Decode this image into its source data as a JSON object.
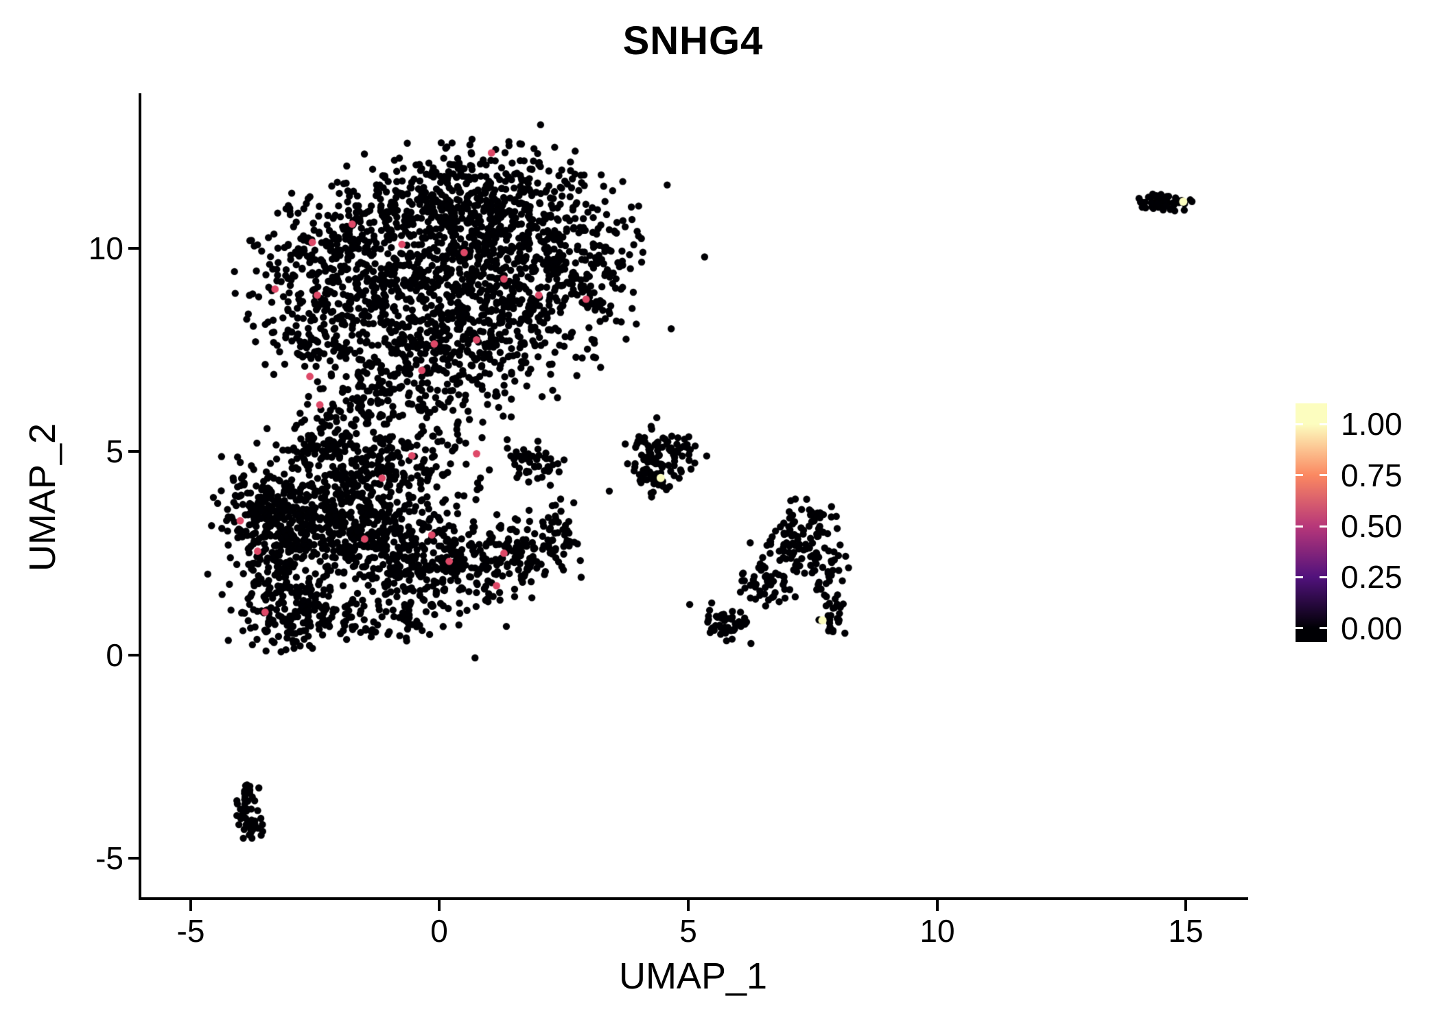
{
  "chart_data": {
    "type": "scatter",
    "title": "SNHG4",
    "xlabel": "UMAP_1",
    "ylabel": "UMAP_2",
    "xlim": [
      -6.0,
      16.2
    ],
    "ylim": [
      -6.0,
      13.75
    ],
    "x_ticks": [
      -5,
      0,
      5,
      10,
      15
    ],
    "x_tick_labels": [
      "-5",
      "0",
      "5",
      "10",
      "15"
    ],
    "y_ticks": [
      -5,
      0,
      5,
      10
    ],
    "y_tick_labels": [
      "-5",
      "0",
      "5",
      "10"
    ],
    "grid": "off",
    "legend_position": "right",
    "background": "#ffffff",
    "point_color_zero": "#000004",
    "colorbar": {
      "tick_labels": [
        "1.00",
        "0.75",
        "0.50",
        "0.25",
        "0.00"
      ],
      "tick_values": [
        1.0,
        0.75,
        0.5,
        0.25,
        0.0
      ],
      "gradient_stops": [
        {
          "value": 0.0,
          "color": "#000004"
        },
        {
          "value": 0.25,
          "color": "#51127c"
        },
        {
          "value": 0.5,
          "color": "#b73779"
        },
        {
          "value": 0.75,
          "color": "#fb8861"
        },
        {
          "value": 1.0,
          "color": "#fcfdbf"
        }
      ]
    },
    "seed": 42,
    "cluster_fields": [
      "cx",
      "cy",
      "sx",
      "sy",
      "n"
    ],
    "clusters": [
      [
        0.9,
        11.6,
        1.0,
        0.5,
        220
      ],
      [
        -0.9,
        10.7,
        1.1,
        0.6,
        220
      ],
      [
        1.6,
        10.4,
        1.1,
        0.7,
        260
      ],
      [
        -2.2,
        9.6,
        0.8,
        0.8,
        220
      ],
      [
        0.3,
        9.4,
        1.2,
        0.7,
        300
      ],
      [
        2.6,
        9.2,
        0.7,
        0.8,
        180
      ],
      [
        -0.6,
        8.3,
        1.1,
        0.6,
        220
      ],
      [
        1.2,
        8.0,
        0.9,
        0.5,
        160
      ],
      [
        -2.6,
        7.8,
        0.5,
        0.4,
        80
      ],
      [
        0.1,
        7.0,
        0.8,
        0.5,
        130
      ],
      [
        -1.5,
        6.7,
        0.6,
        0.4,
        70
      ],
      [
        -0.5,
        6.1,
        0.9,
        0.4,
        60
      ],
      [
        -2.3,
        3.6,
        0.9,
        0.8,
        380
      ],
      [
        -1.0,
        2.8,
        0.9,
        0.7,
        300
      ],
      [
        -3.3,
        2.5,
        0.5,
        0.8,
        180
      ],
      [
        -2.9,
        1.0,
        0.5,
        0.45,
        140
      ],
      [
        -3.6,
        3.6,
        0.35,
        0.5,
        90
      ],
      [
        0.3,
        2.0,
        0.8,
        0.5,
        160
      ],
      [
        1.5,
        2.6,
        0.55,
        0.45,
        110
      ],
      [
        -0.9,
        4.9,
        0.9,
        0.45,
        130
      ],
      [
        -2.2,
        5.3,
        0.6,
        0.4,
        90
      ],
      [
        1.9,
        4.75,
        0.35,
        0.25,
        45
      ],
      [
        2.3,
        2.9,
        0.25,
        0.35,
        35
      ],
      [
        -1.2,
        0.8,
        0.8,
        0.3,
        70
      ],
      [
        4.35,
        4.9,
        0.3,
        0.4,
        85
      ],
      [
        4.9,
        4.95,
        0.2,
        0.15,
        20
      ],
      [
        4.35,
        4.2,
        0.2,
        0.15,
        15
      ],
      [
        7.25,
        2.55,
        0.45,
        0.45,
        100
      ],
      [
        6.5,
        1.7,
        0.3,
        0.3,
        40
      ],
      [
        5.75,
        0.8,
        0.25,
        0.18,
        45
      ],
      [
        7.9,
        1.4,
        0.12,
        0.5,
        35
      ],
      [
        7.5,
        3.3,
        0.3,
        0.2,
        25
      ],
      [
        14.55,
        11.1,
        0.22,
        0.13,
        55
      ],
      [
        -3.85,
        -3.55,
        0.1,
        0.25,
        25
      ],
      [
        -3.8,
        -4.15,
        0.13,
        0.2,
        30
      ]
    ],
    "highlight_points": {
      "mid": {
        "value": 0.6,
        "color": "#de4968",
        "points": [
          [
            1.05,
            12.35
          ],
          [
            -2.55,
            10.15
          ],
          [
            -1.75,
            10.6
          ],
          [
            -0.75,
            10.1
          ],
          [
            0.5,
            9.9
          ],
          [
            -3.3,
            9.0
          ],
          [
            -2.45,
            8.85
          ],
          [
            1.3,
            9.25
          ],
          [
            2.0,
            8.85
          ],
          [
            2.95,
            8.75
          ],
          [
            -0.1,
            7.65
          ],
          [
            0.75,
            7.75
          ],
          [
            -0.35,
            7.0
          ],
          [
            -2.6,
            6.85
          ],
          [
            -2.4,
            6.15
          ],
          [
            0.75,
            4.95
          ],
          [
            -0.55,
            4.9
          ],
          [
            -1.15,
            4.35
          ],
          [
            -4.0,
            3.3
          ],
          [
            -3.65,
            2.55
          ],
          [
            -1.5,
            2.85
          ],
          [
            -0.15,
            2.95
          ],
          [
            0.2,
            2.3
          ],
          [
            1.15,
            1.7
          ],
          [
            -3.5,
            1.05
          ],
          [
            1.3,
            2.5
          ]
        ]
      },
      "high": {
        "value": 1.0,
        "color": "#fcfdbf",
        "points": [
          [
            4.45,
            4.35
          ],
          [
            7.7,
            0.85
          ],
          [
            14.95,
            11.15
          ]
        ]
      }
    }
  }
}
